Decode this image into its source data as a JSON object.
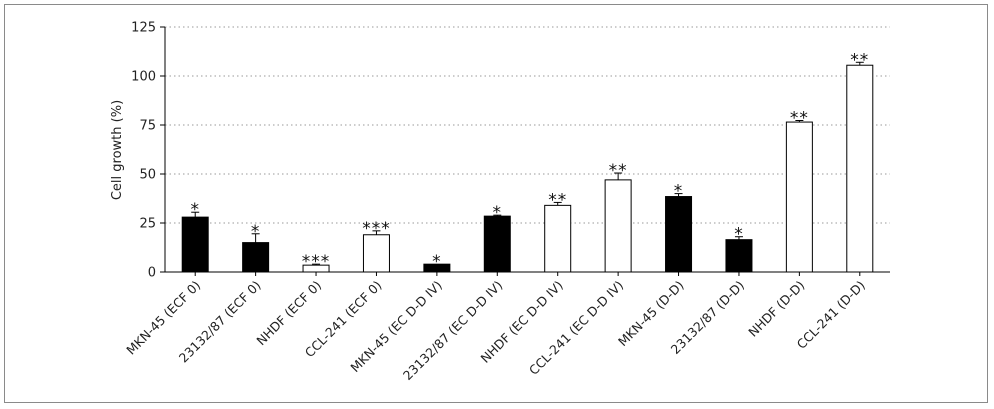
{
  "chart_data": {
    "type": "bar",
    "ylabel": "Cell growth (%)",
    "ylim": [
      0,
      125
    ],
    "yticks": [
      0,
      25,
      50,
      75,
      100,
      125
    ],
    "grid": "horizontal dotted",
    "categories": [
      "MKN-45 (ECF 0)",
      "23132/87 (ECF 0)",
      "NHDF (ECF 0)",
      "CCL-241 (ECF 0)",
      "MKN-45 (EC D-D IV)",
      "23132/87 (EC D-D IV)",
      "NHDF (EC D-D IV)",
      "CCL-241 (EC D-D IV)",
      "MKN-45 (D-D)",
      "23132/87 (D-D)",
      "NHDF (D-D)",
      "CCL-241 (D-D)"
    ],
    "values": [
      28,
      15,
      3.5,
      19,
      4,
      28.5,
      34,
      47,
      38.5,
      16.5,
      76.5,
      105.5
    ],
    "errors": [
      2.5,
      4.5,
      0.5,
      2,
      0,
      0.5,
      1.5,
      3.5,
      1.5,
      1.5,
      0.8,
      1.5
    ],
    "bar_fill": [
      "black",
      "black",
      "white",
      "white",
      "black",
      "black",
      "white",
      "white",
      "black",
      "black",
      "white",
      "white"
    ],
    "significance": [
      "*",
      "*",
      "***",
      "***",
      "*",
      "*",
      "**",
      "**",
      "*",
      "*",
      "**",
      "**"
    ]
  },
  "colors": {
    "dark_bar": "#000000",
    "light_bar": "#ffffff",
    "axis": "#000000",
    "grid": "#9a9a9a",
    "frame": "#8a8a8a"
  }
}
